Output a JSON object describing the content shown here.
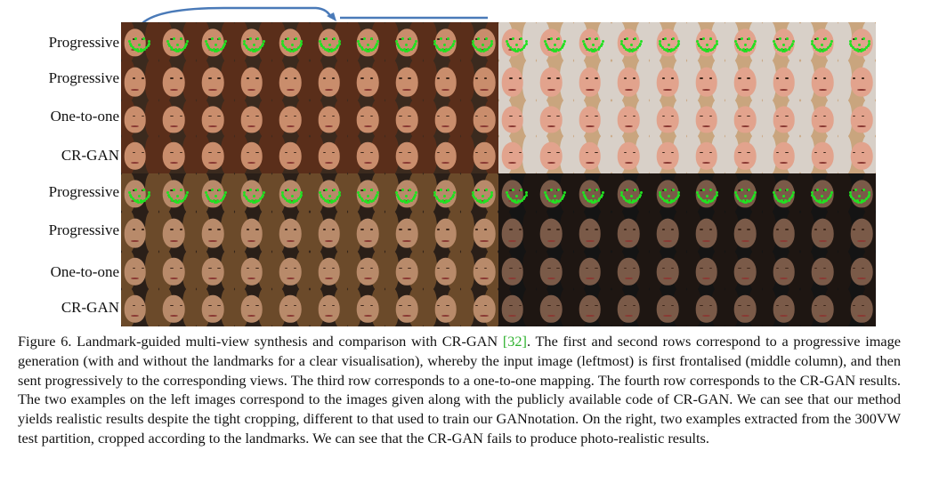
{
  "row_labels": [
    "Progressive",
    "Progressive",
    "One-to-one",
    "CR-GAN",
    "Progressive",
    "Progressive",
    "One-to-one",
    "CR-GAN"
  ],
  "caption": {
    "part1": "Figure 6. Landmark-guided multi-view synthesis and comparison with CR-GAN ",
    "cite": "[32]",
    "part2": ". The first and second rows correspond to a progressive image generation (with and without the landmarks for a clear visualisation), whereby the input image (leftmost) is first frontalised (middle column), and then sent progressively to the corresponding views. The third row corresponds to a one-to-one mapping. The fourth row corresponds to the CR-GAN results. The two examples on the left images correspond to the images given along with the publicly available code of CR-GAN. We can see that our method yields realistic results despite the tight cropping, different to that used to train our GANnotation. On the right, two examples extracted from the 300VW test partition, cropped according to the landmarks. We can see that the CR-GAN fails to produce photo-realistic results."
  },
  "colors": {
    "landmark": "#22e022",
    "arrow": "#4a7ab8",
    "citation": "#2db12d"
  }
}
